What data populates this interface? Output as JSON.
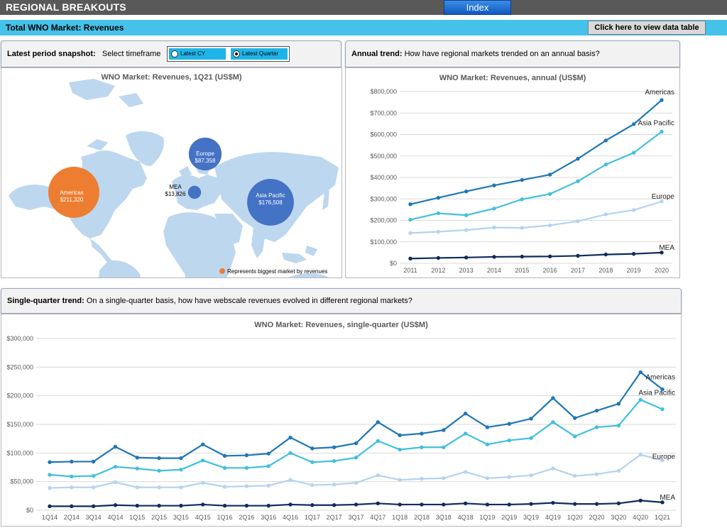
{
  "header": {
    "title": "REGIONAL BREAKOUTS",
    "index_label": "Index"
  },
  "subheader": {
    "label": "Total WNO Market: Revenues",
    "data_table_button": "Click here to view data table"
  },
  "snapshot": {
    "heading": "Latest period snapshot:",
    "select_label": "Select timeframe",
    "options": [
      "Latest CY",
      "Latest Quarter"
    ],
    "selected": "Latest Quarter"
  },
  "annual_section": {
    "heading": "Annual trend:",
    "question": "How have regional markets trended on an annual basis?"
  },
  "quarter_section": {
    "heading": "Single-quarter trend:",
    "question": "On a single-quarter basis, how have webscale revenues evolved in different regional markets?"
  },
  "colors": {
    "americas": "#1f77b4",
    "asia_pacific": "#41c0dd",
    "europe": "#b4d3ef",
    "mea": "#0f2c5c",
    "bubble_biggest": "#ed7d31",
    "bubble_other": "#4472c4",
    "land": "#bdd7ee"
  },
  "chart_data": [
    {
      "type": "bubble_map",
      "title": "WNO Market: Revenues, 1Q21 (US$M)",
      "note": "Represents biggest market by revenues",
      "bubbles": [
        {
          "region": "Americas",
          "value_label": "$211,320",
          "value": 211320,
          "biggest": true
        },
        {
          "region": "Europe",
          "value_label": "$87,358",
          "value": 87358,
          "biggest": false
        },
        {
          "region": "MEA",
          "value_label": "$13,826",
          "value": 13826,
          "biggest": false
        },
        {
          "region": "Asia Pacific",
          "value_label": "$176,508",
          "value": 176508,
          "biggest": false
        }
      ]
    },
    {
      "type": "line",
      "title": "WNO Market: Revenues, annual (US$M)",
      "x": [
        "2011",
        "2012",
        "2013",
        "2014",
        "2015",
        "2016",
        "2017",
        "2018",
        "2019",
        "2020"
      ],
      "ylim": [
        0,
        800000
      ],
      "yticks": [
        0,
        100000,
        200000,
        300000,
        400000,
        500000,
        600000,
        700000,
        800000
      ],
      "ytick_labels": [
        "$0",
        "$100,000",
        "$200,000",
        "$300,000",
        "$400,000",
        "$500,000",
        "$600,000",
        "$700,000",
        "$800,000"
      ],
      "series": [
        {
          "name": "Americas",
          "color": "#1f77b4",
          "values": [
            275000,
            305000,
            335000,
            363000,
            388000,
            413000,
            487000,
            572000,
            648000,
            760000
          ]
        },
        {
          "name": "Asia Pacific",
          "color": "#41c0dd",
          "values": [
            203000,
            233000,
            224000,
            255000,
            298000,
            323000,
            382000,
            460000,
            515000,
            613000
          ]
        },
        {
          "name": "Europe",
          "color": "#b4d3ef",
          "values": [
            141000,
            147000,
            155000,
            167000,
            165000,
            177000,
            196000,
            228000,
            248000,
            288000
          ]
        },
        {
          "name": "MEA",
          "color": "#0f2c5c",
          "values": [
            22000,
            25000,
            27000,
            30000,
            31000,
            32000,
            35000,
            41000,
            44000,
            50000
          ]
        }
      ],
      "grid": true
    },
    {
      "type": "line",
      "title": "WNO Market: Revenues, single-quarter (US$M)",
      "x": [
        "1Q14",
        "2Q14",
        "3Q14",
        "4Q14",
        "1Q15",
        "2Q15",
        "3Q15",
        "4Q15",
        "1Q16",
        "2Q16",
        "3Q16",
        "4Q16",
        "1Q17",
        "2Q17",
        "3Q17",
        "4Q17",
        "1Q18",
        "2Q18",
        "3Q18",
        "4Q18",
        "1Q19",
        "2Q19",
        "3Q19",
        "4Q19",
        "1Q20",
        "2Q20",
        "3Q20",
        "4Q20",
        "1Q21"
      ],
      "ylim": [
        0,
        300000
      ],
      "yticks": [
        0,
        50000,
        100000,
        150000,
        200000,
        250000,
        300000
      ],
      "ytick_labels": [
        "$0",
        "$50,000",
        "$100,000",
        "$150,000",
        "$200,000",
        "$250,000",
        "$300,000"
      ],
      "series": [
        {
          "name": "Americas",
          "color": "#1f77b4",
          "values": [
            84000,
            85000,
            85000,
            111000,
            92000,
            91000,
            91000,
            115000,
            95000,
            96000,
            99000,
            127000,
            108000,
            110000,
            117000,
            154000,
            131000,
            134000,
            140000,
            169000,
            145000,
            151000,
            160000,
            196000,
            161000,
            174000,
            186000,
            241000,
            211320
          ]
        },
        {
          "name": "Asia Pacific",
          "color": "#41c0dd",
          "values": [
            62000,
            59000,
            60000,
            76000,
            73000,
            69000,
            71000,
            87000,
            74000,
            74000,
            77000,
            100000,
            84000,
            86000,
            92000,
            121000,
            106000,
            110000,
            110000,
            134000,
            115000,
            122000,
            126000,
            154000,
            129000,
            145000,
            148000,
            193000,
            176508
          ]
        },
        {
          "name": "Europe",
          "color": "#b4d3ef",
          "values": [
            39000,
            40000,
            40000,
            49000,
            40000,
            40000,
            40000,
            48000,
            41000,
            42000,
            43000,
            53000,
            44000,
            45000,
            48000,
            61000,
            53000,
            55000,
            56000,
            67000,
            56000,
            58000,
            61000,
            73000,
            60000,
            63000,
            69000,
            97000,
            87358
          ]
        },
        {
          "name": "MEA",
          "color": "#0f2c5c",
          "values": [
            7000,
            7000,
            7000,
            9000,
            8000,
            8000,
            8000,
            10000,
            8000,
            8000,
            8000,
            10000,
            9000,
            9000,
            10000,
            12000,
            10000,
            10000,
            10000,
            12000,
            10000,
            10000,
            11000,
            13000,
            11000,
            11000,
            12000,
            17000,
            13826
          ]
        }
      ],
      "grid": true
    }
  ]
}
